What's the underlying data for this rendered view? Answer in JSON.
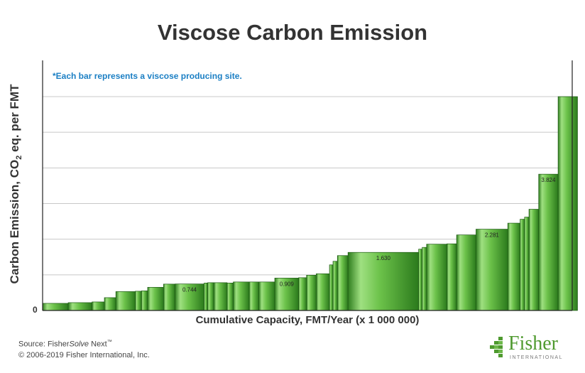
{
  "header": {
    "title": "Viscose Carbon Emission"
  },
  "annotation": "*Each bar represents a viscose producing site.",
  "footer": {
    "source_prefix": "Source: Fisher",
    "source_product": "Solve",
    "source_suffix": " Next",
    "trademark": "™",
    "copyright": "© 2006-2019 Fisher International, Inc."
  },
  "logo": {
    "word": "Fisher",
    "sub": "INTERNATIONAL"
  },
  "colors": {
    "bar_light": "#9fe081",
    "bar_mid": "#58b83a",
    "bar_dark": "#2b7a1c",
    "bar_stroke": "#1e5a14",
    "grid": "#c8c8c8",
    "note": "#1b7fc4",
    "logo": "#4f9a2f"
  },
  "chart_data": {
    "type": "bar",
    "variable_width": true,
    "ylabel_parts": [
      "Carbon Emission, CO",
      "2",
      " eq. per FMT"
    ],
    "xlabel": "Cumulative Capacity, FMT/Year (x 1 000 000)",
    "y_tick_labels": [
      "0"
    ],
    "ylim": [
      0,
      6
    ],
    "xlim": [
      0,
      6.0
    ],
    "grid": "horizontal",
    "bars": [
      {
        "capacity": 0.29,
        "value": 0.2
      },
      {
        "capacity": 0.27,
        "value": 0.22
      },
      {
        "capacity": 0.14,
        "value": 0.24
      },
      {
        "capacity": 0.13,
        "value": 0.36
      },
      {
        "capacity": 0.22,
        "value": 0.53
      },
      {
        "capacity": 0.07,
        "value": 0.54
      },
      {
        "capacity": 0.07,
        "value": 0.55
      },
      {
        "capacity": 0.18,
        "value": 0.65
      },
      {
        "capacity": 0.13,
        "value": 0.74
      },
      {
        "capacity": 0.33,
        "value": 0.744,
        "label": "0.744"
      },
      {
        "capacity": 0.04,
        "value": 0.77
      },
      {
        "capacity": 0.07,
        "value": 0.78
      },
      {
        "capacity": 0.15,
        "value": 0.78
      },
      {
        "capacity": 0.07,
        "value": 0.77
      },
      {
        "capacity": 0.18,
        "value": 0.8
      },
      {
        "capacity": 0.11,
        "value": 0.8
      },
      {
        "capacity": 0.18,
        "value": 0.8
      },
      {
        "capacity": 0.27,
        "value": 0.909,
        "label": "0.909"
      },
      {
        "capacity": 0.09,
        "value": 0.92
      },
      {
        "capacity": 0.11,
        "value": 0.99
      },
      {
        "capacity": 0.15,
        "value": 1.03
      },
      {
        "capacity": 0.04,
        "value": 1.28
      },
      {
        "capacity": 0.05,
        "value": 1.38
      },
      {
        "capacity": 0.12,
        "value": 1.54
      },
      {
        "capacity": 0.8,
        "value": 1.63,
        "label": "1.630"
      },
      {
        "capacity": 0.04,
        "value": 1.72
      },
      {
        "capacity": 0.05,
        "value": 1.77
      },
      {
        "capacity": 0.23,
        "value": 1.86
      },
      {
        "capacity": 0.11,
        "value": 1.87
      },
      {
        "capacity": 0.22,
        "value": 2.12
      },
      {
        "capacity": 0.36,
        "value": 2.281,
        "label": "2.281"
      },
      {
        "capacity": 0.14,
        "value": 2.45
      },
      {
        "capacity": 0.05,
        "value": 2.56
      },
      {
        "capacity": 0.05,
        "value": 2.62
      },
      {
        "capacity": 0.11,
        "value": 2.84
      },
      {
        "capacity": 0.22,
        "value": 3.824,
        "label": "3.824"
      },
      {
        "capacity": 0.22,
        "value": 6.0
      }
    ]
  }
}
